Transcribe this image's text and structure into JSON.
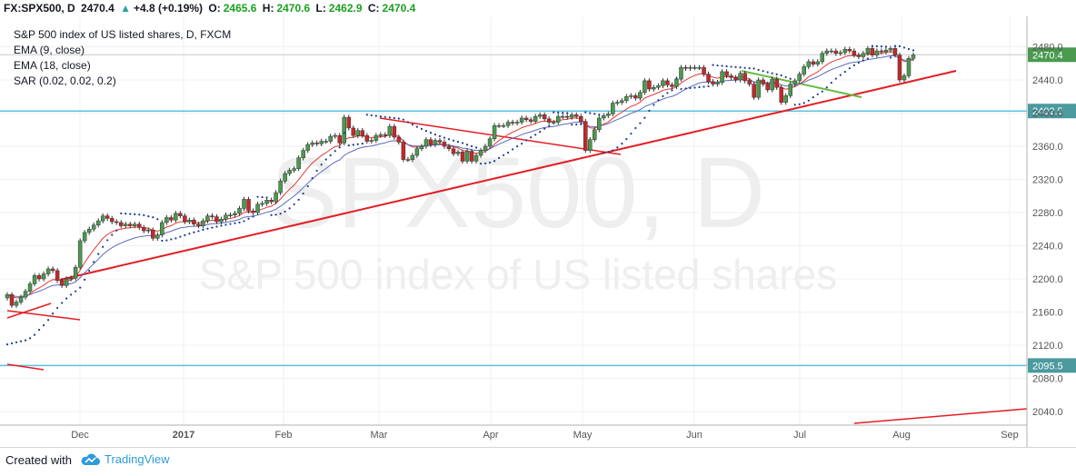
{
  "header": {
    "symbol": "FX:SPX500, D",
    "last": "2470.4",
    "change": "+4.8 (+0.19%)",
    "o_label": "O:",
    "o": "2465.6",
    "h_label": "H:",
    "h": "2470.6",
    "l_label": "L:",
    "l": "2462.9",
    "c_label": "C:",
    "c": "2470.4"
  },
  "legend": {
    "title": "S&P 500 index of US listed shares, D, FXCM",
    "ema9": "EMA (9, close)",
    "ema18": "EMA (18, close)",
    "sar": "SAR (0.02, 0.02, 0.2)"
  },
  "watermark": {
    "line1": "SPX500, D",
    "line2": "S&P 500 index of US listed shares"
  },
  "footer": {
    "created_with": "Created with",
    "brand": "TradingView"
  },
  "colors": {
    "up": "#4a9a4f",
    "down": "#c62828",
    "ema9": "#e53935",
    "ema18": "#5c6bc0",
    "sar": "#1a3a8a",
    "trendline": "#e51c23",
    "green_line": "#66bb44",
    "level": "#5bc0de",
    "price_label": "#4a9a4f"
  },
  "chart_data": {
    "type": "candlestick",
    "y_range": [
      2020,
      2500
    ],
    "y_ticks": [
      2040,
      2080,
      2120,
      2160,
      2200,
      2240,
      2280,
      2320,
      2360,
      2400,
      2440,
      2480
    ],
    "x_labels": [
      "Dec",
      "2017",
      "Feb",
      "Mar",
      "Apr",
      "May",
      "Jun",
      "Jul",
      "Aug",
      "Sep"
    ],
    "last_price": 2470.4,
    "horizontal_levels": [
      2402.5,
      2095.5
    ],
    "closes": [
      2181,
      2168,
      2172,
      2178,
      2185,
      2194,
      2204,
      2200,
      2206,
      2212,
      2210,
      2198,
      2192,
      2200,
      2201,
      2214,
      2246,
      2256,
      2260,
      2265,
      2270,
      2276,
      2273,
      2269,
      2268,
      2264,
      2266,
      2264,
      2266,
      2262,
      2258,
      2259,
      2249,
      2253,
      2268,
      2274,
      2271,
      2279,
      2276,
      2269,
      2271,
      2266,
      2264,
      2270,
      2276,
      2275,
      2269,
      2272,
      2277,
      2277,
      2279,
      2285,
      2296,
      2282,
      2280,
      2290,
      2291,
      2295,
      2293,
      2304,
      2318,
      2327,
      2331,
      2333,
      2346,
      2355,
      2362,
      2364,
      2363,
      2366,
      2366,
      2372,
      2373,
      2364,
      2395,
      2382,
      2373,
      2379,
      2373,
      2366,
      2367,
      2373,
      2374,
      2373,
      2384,
      2371,
      2365,
      2344,
      2344,
      2349,
      2357,
      2360,
      2368,
      2362,
      2367,
      2365,
      2360,
      2357,
      2351,
      2353,
      2342,
      2354,
      2342,
      2349,
      2355,
      2360,
      2369,
      2385,
      2385,
      2385,
      2389,
      2388,
      2389,
      2394,
      2392,
      2390,
      2396,
      2398,
      2393,
      2389,
      2389,
      2396,
      2396,
      2395,
      2398,
      2396,
      2390,
      2355,
      2368,
      2380,
      2394,
      2397,
      2399,
      2412,
      2413,
      2415,
      2420,
      2421,
      2418,
      2425,
      2439,
      2429,
      2431,
      2433,
      2439,
      2434,
      2432,
      2441,
      2455,
      2454,
      2455,
      2455,
      2455,
      2447,
      2438,
      2435,
      2437,
      2450,
      2445,
      2443,
      2440,
      2448,
      2439,
      2435,
      2419,
      2440,
      2435,
      2428,
      2441,
      2431,
      2413,
      2421,
      2435,
      2439,
      2447,
      2456,
      2462,
      2459,
      2462,
      2472,
      2475,
      2475,
      2472,
      2473,
      2477,
      2475,
      2470,
      2468,
      2472,
      2478,
      2470,
      2475,
      2474,
      2476,
      2478,
      2470,
      2440,
      2445,
      2466,
      2470
    ]
  }
}
